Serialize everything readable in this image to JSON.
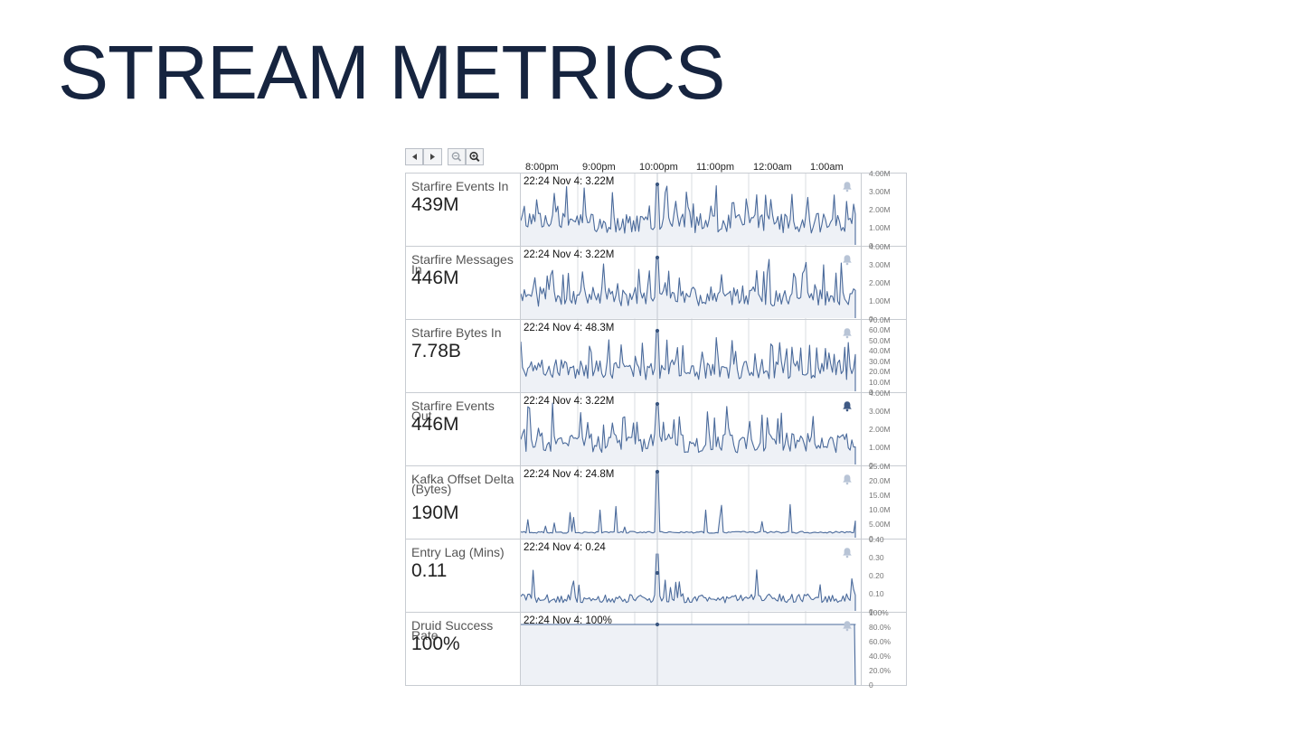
{
  "title": "STREAM METRICS",
  "controls": {
    "prev_icon": "triangle-left-icon",
    "next_icon": "triangle-right-icon",
    "zoom_out_icon": "zoom-out-icon",
    "zoom_in_icon": "zoom-in-icon"
  },
  "time_axis": [
    "8:00pm",
    "9:00pm",
    "10:00pm",
    "11:00pm",
    "12:00am",
    "1:00am"
  ],
  "colors": {
    "title": "#16243f",
    "line": "#4a6a9b",
    "fill": "#eef1f6",
    "bell_inactive": "#b8c4d6",
    "bell_active": "#3f5a85"
  },
  "rows": [
    {
      "label": "Starfire Events In",
      "value": "439M",
      "tooltip": "22:24 Nov  4: 3.22M",
      "ticks": [
        "4.00M",
        "3.00M",
        "2.00M",
        "1.00M",
        "0"
      ],
      "pattern": "busy",
      "bell_active": false
    },
    {
      "label": "Starfire Messages In",
      "value": "446M",
      "tooltip": "22:24 Nov  4: 3.22M",
      "ticks": [
        "4.00M",
        "3.00M",
        "2.00M",
        "1.00M",
        "0"
      ],
      "pattern": "busy",
      "bell_active": false
    },
    {
      "label": "Starfire Bytes In",
      "value": "7.78B",
      "tooltip": "22:24 Nov  4: 48.3M",
      "ticks": [
        "70.0M",
        "60.0M",
        "50.0M",
        "40.0M",
        "30.0M",
        "20.0M",
        "10.0M",
        "0"
      ],
      "pattern": "busy",
      "bell_active": false
    },
    {
      "label": "Starfire Events Out",
      "value": "446M",
      "tooltip": "22:24 Nov  4: 3.22M",
      "ticks": [
        "4.00M",
        "3.00M",
        "2.00M",
        "1.00M",
        "0"
      ],
      "pattern": "busy",
      "bell_active": true
    },
    {
      "label": "Kafka Offset Delta (Bytes)",
      "value": "190M",
      "tooltip": "22:24 Nov  4: 24.8M",
      "ticks": [
        "25.0M",
        "20.0M",
        "15.0M",
        "10.0M",
        "5.00M",
        "0"
      ],
      "pattern": "spiky",
      "bell_active": false
    },
    {
      "label": "Entry Lag (Mins)",
      "value": "0.11",
      "tooltip": "22:24 Nov  4: 0.24",
      "ticks": [
        "0.40",
        "0.30",
        "0.20",
        "0.10",
        "0"
      ],
      "pattern": "lag",
      "bell_active": false
    },
    {
      "label": "Druid Success Rate",
      "value": "100%",
      "tooltip": "22:24 Nov  4: 100%",
      "ticks": [
        "100%",
        "80.0%",
        "60.0%",
        "40.0%",
        "20.0%",
        "0"
      ],
      "pattern": "flat",
      "bell_active": false
    }
  ]
}
